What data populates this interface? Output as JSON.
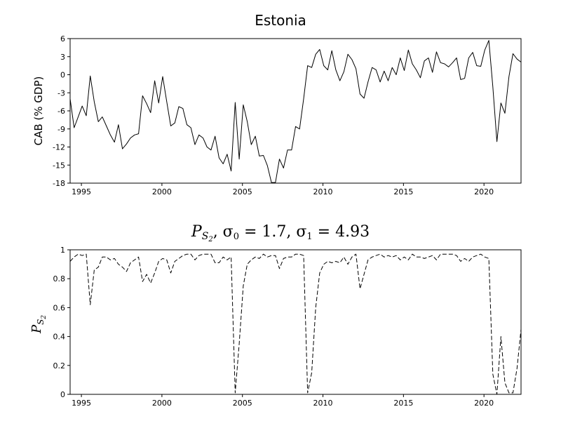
{
  "chart_data": [
    {
      "type": "line",
      "title": "Estonia",
      "xlabel": "",
      "ylabel": "CAB (% GDP)",
      "xlim": [
        1994.3,
        2022.3
      ],
      "ylim": [
        -18,
        6
      ],
      "xticks": [
        1995,
        2000,
        2005,
        2010,
        2015,
        2020
      ],
      "xtick_labels": [
        "1995",
        "2000",
        "2005",
        "2010",
        "2015",
        "2020"
      ],
      "yticks": [
        -18,
        -15,
        -12,
        -9,
        -6,
        -3,
        0,
        3,
        6
      ],
      "ytick_labels": [
        "-18",
        "-15",
        "-12",
        "-9",
        "-6",
        "-3",
        "0",
        "3",
        "6"
      ],
      "grid": false,
      "line_style": "solid",
      "line_color": "#000000",
      "series": [
        {
          "x": [
            1994.3,
            1994.55,
            1994.8,
            1995.05,
            1995.3,
            1995.55,
            1995.8,
            1996.05,
            1996.3,
            1996.55,
            1996.8,
            1997.05,
            1997.3,
            1997.55,
            1997.8,
            1998.05,
            1998.3,
            1998.55,
            1998.8,
            1999.05,
            1999.3,
            1999.55,
            1999.8,
            2000.05,
            2000.3,
            2000.55,
            2000.8,
            2001.05,
            2001.3,
            2001.55,
            2001.8,
            2002.05,
            2002.3,
            2002.55,
            2002.8,
            2003.05,
            2003.3,
            2003.55,
            2003.8,
            2004.05,
            2004.3,
            2004.55,
            2004.8,
            2005.05,
            2005.3,
            2005.55,
            2005.8,
            2006.05,
            2006.3,
            2006.55,
            2006.8,
            2007.05,
            2007.3,
            2007.55,
            2007.8,
            2008.05,
            2008.3,
            2008.55,
            2008.8,
            2009.05,
            2009.3,
            2009.55,
            2009.8,
            2010.05,
            2010.3,
            2010.55,
            2010.8,
            2011.05,
            2011.3,
            2011.55,
            2011.8,
            2012.05,
            2012.3,
            2012.55,
            2012.8,
            2013.05,
            2013.3,
            2013.55,
            2013.8,
            2014.05,
            2014.3,
            2014.55,
            2014.8,
            2015.05,
            2015.3,
            2015.55,
            2015.8,
            2016.05,
            2016.3,
            2016.55,
            2016.8,
            2017.05,
            2017.3,
            2017.55,
            2017.8,
            2018.05,
            2018.3,
            2018.55,
            2018.8,
            2019.05,
            2019.3,
            2019.55,
            2019.8,
            2020.05,
            2020.3,
            2020.55,
            2020.8,
            2021.05,
            2021.3,
            2021.55,
            2021.8,
            2022.05,
            2022.3
          ],
          "y": [
            -4.0,
            -8.8,
            -7.0,
            -5.2,
            -6.8,
            -0.2,
            -4.5,
            -7.8,
            -7.0,
            -8.5,
            -10.0,
            -11.2,
            -8.3,
            -12.3,
            -11.5,
            -10.5,
            -10.0,
            -9.8,
            -3.5,
            -4.8,
            -6.3,
            -1.0,
            -4.7,
            -0.3,
            -4.5,
            -8.5,
            -8.0,
            -5.3,
            -5.6,
            -8.3,
            -8.8,
            -11.6,
            -10.0,
            -10.5,
            -12.0,
            -12.5,
            -10.2,
            -13.8,
            -14.8,
            -13.2,
            -16.0,
            -4.6,
            -14.0,
            -5.0,
            -7.8,
            -11.6,
            -10.2,
            -13.5,
            -13.4,
            -15.1,
            -17.9,
            -17.9,
            -14.0,
            -15.5,
            -12.5,
            -12.5,
            -8.6,
            -9.0,
            -4.0,
            1.5,
            1.2,
            3.4,
            4.2,
            1.5,
            0.8,
            4.0,
            0.8,
            -1.0,
            0.5,
            3.4,
            2.5,
            1.0,
            -3.2,
            -3.9,
            -1.2,
            1.2,
            0.8,
            -1.2,
            0.6,
            -1.0,
            1.2,
            0.0,
            2.8,
            0.7,
            4.1,
            1.8,
            0.8,
            -0.5,
            2.3,
            2.8,
            0.4,
            3.8,
            2.0,
            1.8,
            1.3,
            2.0,
            2.8,
            -0.8,
            -0.6,
            2.8,
            3.7,
            1.5,
            1.4,
            4.1,
            5.7,
            -2.0,
            -11.1,
            -4.7,
            -6.4,
            -0.3,
            3.5,
            2.6,
            2.1
          ]
        }
      ]
    },
    {
      "type": "line",
      "title": "P_S2, σ0 = 1.7, σ1 = 4.93",
      "title_parts": {
        "p": "P",
        "s": "S",
        "sub": "2",
        "rest_a": ", σ",
        "sub0": "0",
        "rest_b": " = 1.7, σ",
        "sub1": "1",
        "rest_c": " = 4.93"
      },
      "xlabel": "",
      "ylabel": "P_S2",
      "ylabel_parts": {
        "p": "P",
        "s": "S",
        "sub": "2"
      },
      "xlim": [
        1994.3,
        2022.3
      ],
      "ylim": [
        0,
        1
      ],
      "xticks": [
        1995,
        2000,
        2005,
        2010,
        2015,
        2020
      ],
      "xtick_labels": [
        "1995",
        "2000",
        "2005",
        "2010",
        "2015",
        "2020"
      ],
      "yticks": [
        0,
        0.2,
        0.4,
        0.6,
        0.8,
        1
      ],
      "ytick_labels": [
        "0",
        "0.2",
        "0.4",
        "0.6",
        "0.8",
        "1"
      ],
      "grid": false,
      "line_style": "dashed",
      "line_color": "#000000",
      "series": [
        {
          "x": [
            1994.3,
            1994.55,
            1994.8,
            1995.05,
            1995.3,
            1995.55,
            1995.8,
            1996.05,
            1996.3,
            1996.55,
            1996.8,
            1997.05,
            1997.3,
            1997.55,
            1997.8,
            1998.05,
            1998.3,
            1998.55,
            1998.8,
            1999.05,
            1999.3,
            1999.55,
            1999.8,
            2000.05,
            2000.3,
            2000.55,
            2000.8,
            2001.05,
            2001.3,
            2001.55,
            2001.8,
            2002.05,
            2002.3,
            2002.55,
            2002.8,
            2003.05,
            2003.3,
            2003.55,
            2003.8,
            2004.05,
            2004.3,
            2004.55,
            2004.8,
            2005.05,
            2005.3,
            2005.55,
            2005.8,
            2006.05,
            2006.3,
            2006.55,
            2006.8,
            2007.05,
            2007.3,
            2007.55,
            2007.8,
            2008.05,
            2008.3,
            2008.55,
            2008.8,
            2009.05,
            2009.3,
            2009.55,
            2009.8,
            2010.05,
            2010.3,
            2010.55,
            2010.8,
            2011.05,
            2011.3,
            2011.55,
            2011.8,
            2012.05,
            2012.3,
            2012.55,
            2012.8,
            2013.05,
            2013.3,
            2013.55,
            2013.8,
            2014.05,
            2014.3,
            2014.55,
            2014.8,
            2015.05,
            2015.3,
            2015.55,
            2015.8,
            2016.05,
            2016.3,
            2016.55,
            2016.8,
            2017.05,
            2017.3,
            2017.55,
            2017.8,
            2018.05,
            2018.3,
            2018.55,
            2018.8,
            2019.05,
            2019.3,
            2019.55,
            2019.8,
            2020.05,
            2020.3,
            2020.55,
            2020.8,
            2021.05,
            2021.3,
            2021.55,
            2021.8,
            2022.05,
            2022.3
          ],
          "y": [
            0.92,
            0.95,
            0.97,
            0.96,
            0.97,
            0.62,
            0.86,
            0.88,
            0.95,
            0.95,
            0.93,
            0.94,
            0.9,
            0.88,
            0.85,
            0.91,
            0.93,
            0.95,
            0.78,
            0.83,
            0.77,
            0.84,
            0.92,
            0.94,
            0.93,
            0.84,
            0.92,
            0.94,
            0.96,
            0.97,
            0.97,
            0.93,
            0.96,
            0.97,
            0.97,
            0.97,
            0.91,
            0.91,
            0.95,
            0.93,
            0.95,
            0.01,
            0.35,
            0.75,
            0.9,
            0.93,
            0.95,
            0.94,
            0.97,
            0.95,
            0.96,
            0.96,
            0.87,
            0.94,
            0.95,
            0.95,
            0.97,
            0.97,
            0.96,
            0.01,
            0.15,
            0.6,
            0.84,
            0.9,
            0.92,
            0.91,
            0.92,
            0.91,
            0.95,
            0.9,
            0.95,
            0.97,
            0.73,
            0.83,
            0.93,
            0.95,
            0.96,
            0.97,
            0.95,
            0.96,
            0.95,
            0.96,
            0.93,
            0.95,
            0.93,
            0.97,
            0.95,
            0.95,
            0.94,
            0.95,
            0.96,
            0.93,
            0.97,
            0.97,
            0.97,
            0.97,
            0.96,
            0.92,
            0.94,
            0.92,
            0.95,
            0.96,
            0.97,
            0.95,
            0.94,
            0.14,
            0.0,
            0.4,
            0.08,
            0.01,
            0.01,
            0.18,
            0.45
          ]
        }
      ]
    }
  ]
}
